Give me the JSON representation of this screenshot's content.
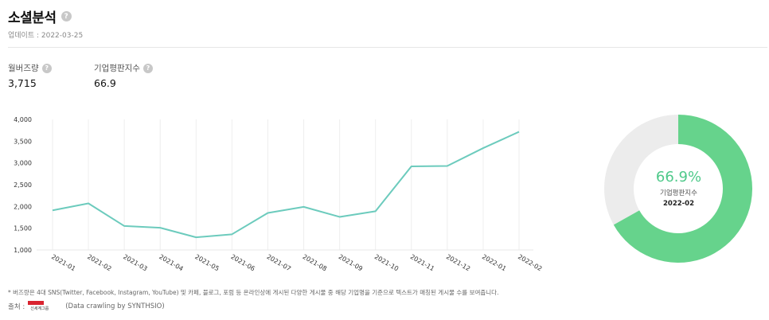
{
  "header": {
    "title": "소셜분석",
    "help_glyph": "?",
    "updated": "업데이트 : 2022-03-25"
  },
  "metrics": [
    {
      "label": "월버즈량",
      "value": "3,715"
    },
    {
      "label": "기업평판지수",
      "value": "66.9"
    }
  ],
  "chart_data": [
    {
      "type": "line",
      "x": [
        "2021-01",
        "2021-02",
        "2021-03",
        "2021-04",
        "2021-05",
        "2021-06",
        "2021-07",
        "2021-08",
        "2021-09",
        "2021-10",
        "2021-11",
        "2021-12",
        "2022-01",
        "2022-02"
      ],
      "series": [
        {
          "values": [
            1910,
            2070,
            1550,
            1510,
            1290,
            1360,
            1850,
            1990,
            1760,
            1890,
            2920,
            2930,
            3340,
            3715
          ]
        }
      ],
      "y_ticks": [
        "1,000",
        "1,500",
        "2,000",
        "2,500",
        "3,000",
        "3,500",
        "4,000"
      ],
      "ylim": [
        1000,
        4000
      ],
      "grid": "vertical",
      "color": "#6ccbbd"
    },
    {
      "type": "pie",
      "variant": "donut",
      "values": [
        66.9,
        33.1
      ],
      "colors": [
        "#66d38c",
        "#ececec"
      ],
      "center_value": "66.9%",
      "center_label": "기업평판지수",
      "center_date": "2022-02"
    }
  ],
  "footer": {
    "note": "* 버즈량은 4대 SNS(Twitter, Facebook, Instagram, YouTube) 및 카페, 블로그, 포럼 등 온라인상에 게시된 다양한 게시물 중 해당 기업명을 기준으로 텍스트가 매칭된 게시물 수를 보여줍니다.",
    "source_label": "출처 :",
    "logo_text": "신세계그룹",
    "source_text": "(Data crawling by SYNTHSIO)"
  }
}
